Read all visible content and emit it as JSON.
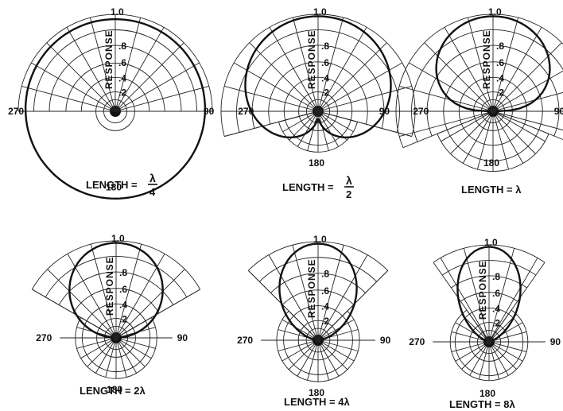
{
  "colors": {
    "ink": "#111111",
    "background": "#ffffff"
  },
  "charts": [
    {
      "name": "length-quarter-wavelength",
      "caption": {
        "prefix": "LENGTH =",
        "num": "λ",
        "den": "4"
      },
      "ring_labels": [
        ".2",
        ".4",
        ".6",
        ".8",
        "1.0"
      ],
      "response_label": "RESPONSE",
      "angle_labels": {
        "top": "",
        "right": "90",
        "bottom": "180",
        "left": "270"
      }
    },
    {
      "name": "length-half-wavelength",
      "caption": {
        "prefix": "LENGTH =",
        "num": "λ",
        "den": "2"
      },
      "ring_labels": [
        ".2",
        ".4",
        ".6",
        ".8",
        "1.0"
      ],
      "response_label": "RESPONSE",
      "angle_labels": {
        "top": "",
        "right": "90",
        "bottom": "180",
        "left": "270"
      }
    },
    {
      "name": "length-one-wavelength",
      "caption": {
        "text": "LENGTH = λ"
      },
      "ring_labels": [
        ".2",
        ".4",
        ".6",
        ".8",
        "1.0"
      ],
      "response_label": "RESPONSE",
      "angle_labels": {
        "top": "",
        "right": "90",
        "bottom": "180",
        "left": "270"
      }
    },
    {
      "name": "length-two-wavelength",
      "caption": {
        "text": "LENGTH = 2λ"
      },
      "ring_labels": [
        ".2",
        ".4",
        ".6",
        ".8",
        "1.0"
      ],
      "response_label": "RESPONSE",
      "angle_labels": {
        "top": "",
        "right": "90",
        "bottom": "180",
        "left": "270"
      }
    },
    {
      "name": "length-four-wavelength",
      "caption": {
        "text": "LENGTH = 4λ"
      },
      "ring_labels": [
        ".2",
        ".4",
        ".6",
        ".8",
        "1.0"
      ],
      "response_label": "RESPONSE",
      "angle_labels": {
        "top": "",
        "right": "90",
        "bottom": "180",
        "left": "270"
      }
    },
    {
      "name": "length-eight-wavelength",
      "caption": {
        "text": "LENGTH = 8λ"
      },
      "ring_labels": [
        ".2",
        ".4",
        ".6",
        ".8",
        "1.0"
      ],
      "response_label": "RESPONSE",
      "angle_labels": {
        "top": "",
        "right": "90",
        "bottom": "180",
        "left": "270"
      }
    }
  ]
}
